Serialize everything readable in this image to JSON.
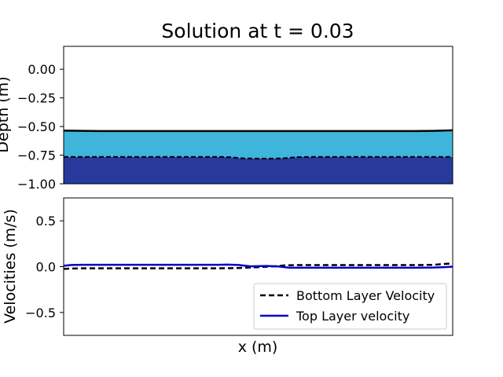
{
  "figure": {
    "title": "Solution at t = 0.03"
  },
  "chart_data": [
    {
      "type": "area",
      "ylabel": "Depth (m)",
      "xlabel": "",
      "xlim": [
        0,
        1
      ],
      "ylim": [
        -1.0,
        0.2
      ],
      "yticks": [
        0.0,
        -0.25,
        -0.5,
        -0.75,
        -1.0
      ],
      "ytick_labels": [
        "0.00",
        "−0.25",
        "−0.50",
        "−0.75",
        "−1.00"
      ],
      "x_ticks_visible": false,
      "bottom": -1.0,
      "colors": {
        "top_layer_fill": "#3fb5dc",
        "bottom_layer_fill": "#273a9c",
        "surface_line": "#000000",
        "interface_line": "#000000"
      },
      "series": [
        {
          "role": "surface",
          "x": [
            0,
            0.05,
            0.1,
            0.2,
            0.3,
            0.4,
            0.5,
            0.6,
            0.7,
            0.8,
            0.9,
            0.95,
            1.0
          ],
          "y": [
            -0.535,
            -0.538,
            -0.54,
            -0.54,
            -0.54,
            -0.54,
            -0.54,
            -0.54,
            -0.54,
            -0.54,
            -0.54,
            -0.538,
            -0.533
          ]
        },
        {
          "role": "interface",
          "x": [
            0,
            0.1,
            0.2,
            0.3,
            0.4,
            0.43,
            0.46,
            0.5,
            0.54,
            0.57,
            0.6,
            0.65,
            0.7,
            0.8,
            0.9,
            1.0
          ],
          "y": [
            -0.765,
            -0.765,
            -0.765,
            -0.765,
            -0.765,
            -0.768,
            -0.778,
            -0.78,
            -0.78,
            -0.776,
            -0.767,
            -0.765,
            -0.765,
            -0.765,
            -0.765,
            -0.765
          ]
        }
      ]
    },
    {
      "type": "line",
      "ylabel": "Velocities (m/s)",
      "xlabel": "x (m)",
      "xlim": [
        0,
        1
      ],
      "ylim": [
        -0.75,
        0.75
      ],
      "yticks": [
        0.5,
        0.0,
        -0.5
      ],
      "ytick_labels": [
        "0.5",
        "0.0",
        "−0.5"
      ],
      "x_ticks_visible": false,
      "legend_position": "lower-right",
      "series": [
        {
          "name": "Bottom Layer Velocity",
          "color": "#000000",
          "style": "dashed",
          "x": [
            0,
            0.02,
            0.05,
            0.1,
            0.2,
            0.3,
            0.4,
            0.45,
            0.5,
            0.55,
            0.57,
            0.6,
            0.7,
            0.8,
            0.9,
            0.95,
            0.98,
            1.0
          ],
          "y": [
            -0.025,
            -0.02,
            -0.018,
            -0.018,
            -0.018,
            -0.018,
            -0.018,
            -0.015,
            -0.005,
            0.005,
            0.015,
            0.017,
            0.017,
            0.017,
            0.017,
            0.02,
            0.03,
            0.035
          ]
        },
        {
          "name": "Top Layer velocity",
          "color": "#0000cc",
          "style": "solid",
          "x": [
            0,
            0.02,
            0.05,
            0.1,
            0.2,
            0.3,
            0.4,
            0.42,
            0.45,
            0.48,
            0.5,
            0.52,
            0.55,
            0.58,
            0.6,
            0.7,
            0.8,
            0.9,
            0.95,
            0.98,
            1.0
          ],
          "y": [
            0.01,
            0.018,
            0.02,
            0.02,
            0.02,
            0.02,
            0.02,
            0.022,
            0.018,
            0.003,
            0.005,
            0.008,
            0.003,
            -0.012,
            -0.012,
            -0.012,
            -0.012,
            -0.012,
            -0.01,
            -0.005,
            0.0
          ]
        }
      ]
    }
  ]
}
